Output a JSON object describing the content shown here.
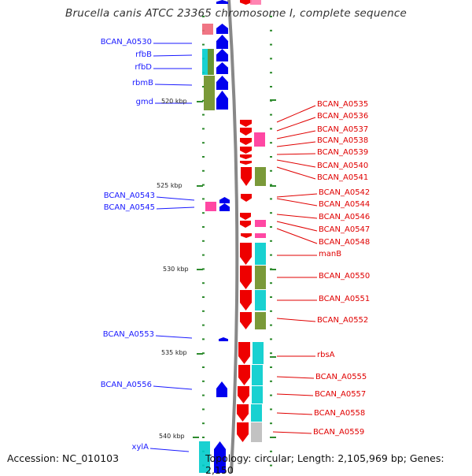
{
  "title": "Brucella canis ATCC 23365 chromosome I, complete sequence",
  "footer": {
    "accession": "Accession: NC_010103",
    "topology": "Topology: circular; Length: 2,105,969 bp; Genes: 2,150"
  },
  "colors": {
    "forward_gene": "#0000ee",
    "reverse_gene": "#ee0000",
    "cog_pink": "#ff3399",
    "cog_cyan": "#00cccc",
    "cog_olive": "#6b8e23",
    "cog_gray": "#bbbbbb",
    "tick": "#2e8b2e",
    "backbone": "#888888"
  },
  "kbp_labels": [
    "520 kbp",
    "525 kbp",
    "530 kbp",
    "535 kbp",
    "540 kbp"
  ],
  "left_labels": [
    "BCAN_A0530",
    "rfbB",
    "rfbD",
    "rbmB",
    "gmd",
    "BCAN_A0543",
    "BCAN_A0545",
    "BCAN_A0553",
    "BCAN_A0556",
    "xylA"
  ],
  "right_labels": [
    "BCAN_A0535",
    "BCAN_A0536",
    "BCAN_A0537",
    "BCAN_A0538",
    "BCAN_A0539",
    "BCAN_A0540",
    "BCAN_A0541",
    "BCAN_A0542",
    "BCAN_A0544",
    "BCAN_A0546",
    "BCAN_A0547",
    "BCAN_A0548",
    "manB",
    "BCAN_A0550",
    "BCAN_A0551",
    "BCAN_A0552",
    "rbsA",
    "BCAN_A0555",
    "BCAN_A0557",
    "BCAN_A0558",
    "BCAN_A0559"
  ]
}
